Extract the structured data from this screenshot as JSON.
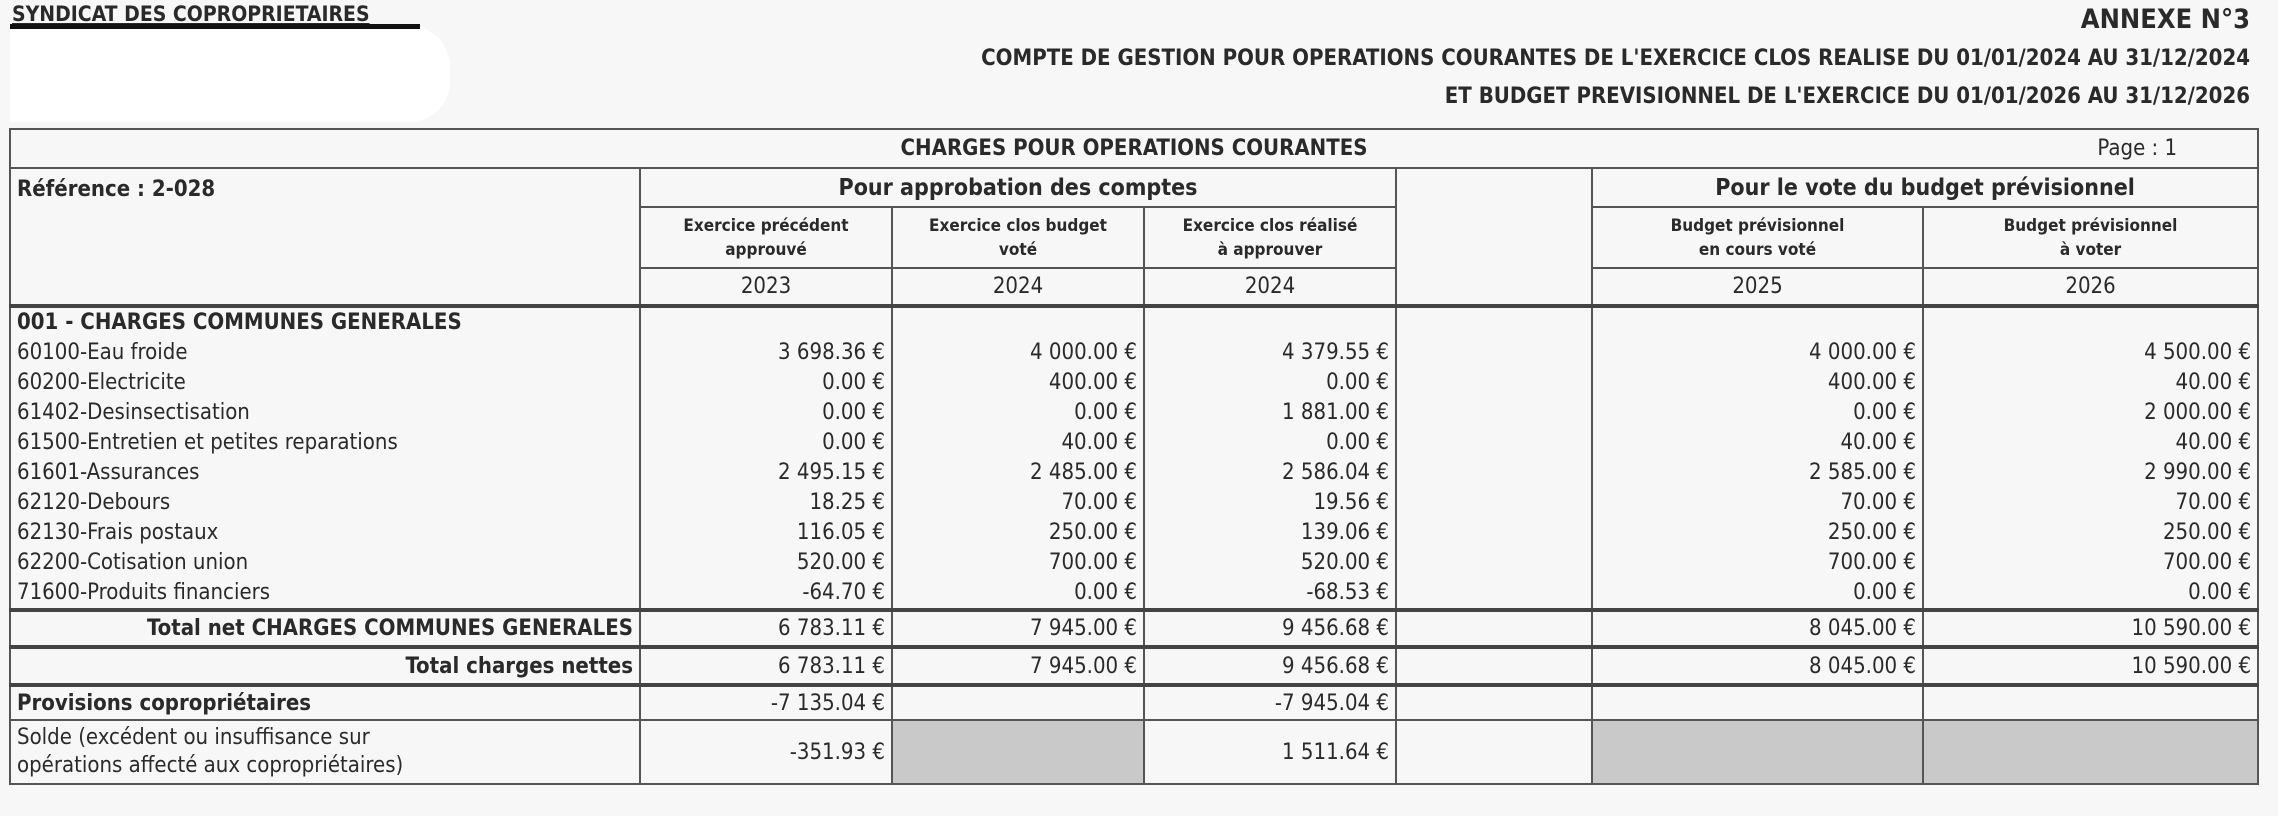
{
  "header": {
    "syndicat": "SYNDICAT DES COPROPRIETAIRES",
    "annexe": "ANNEXE N°3",
    "title_line1": "COMPTE DE GESTION POUR OPERATIONS COURANTES DE L'EXERCICE CLOS REALISE DU 01/01/2024 AU 31/12/2024",
    "title_line2": "ET BUDGET PREVISIONNEL DE L'EXERCICE DU 01/01/2026 AU 31/12/2026"
  },
  "table": {
    "title": "CHARGES POUR OPERATIONS COURANTES",
    "page": "Page : 1",
    "reference": "Référence : 2-028",
    "group_approbation": "Pour approbation des comptes",
    "group_budget": "Pour le vote du budget prévisionnel",
    "columns": [
      {
        "label1": "Exercice précédent",
        "label2": "approuvé",
        "year": "2023"
      },
      {
        "label1": "Exercice clos budget",
        "label2": "voté",
        "year": "2024"
      },
      {
        "label1": "Exercice clos réalisé",
        "label2": "à approuver",
        "year": "2024"
      },
      {
        "label1": "Budget prévisionnel",
        "label2": "en cours voté",
        "year": "2025"
      },
      {
        "label1": "Budget prévisionnel",
        "label2": "à voter",
        "year": "2026"
      }
    ],
    "section": "001 - CHARGES COMMUNES GENERALES",
    "rows": [
      {
        "label": "60100-Eau froide",
        "v": [
          "3 698.36 €",
          "4 000.00 €",
          "4 379.55 €",
          "4 000.00 €",
          "4 500.00 €"
        ]
      },
      {
        "label": "60200-Electricite",
        "v": [
          "0.00 €",
          "400.00 €",
          "0.00 €",
          "400.00 €",
          "40.00 €"
        ]
      },
      {
        "label": "61402-Desinsectisation",
        "v": [
          "0.00 €",
          "0.00 €",
          "1 881.00 €",
          "0.00 €",
          "2 000.00 €"
        ]
      },
      {
        "label": "61500-Entretien et petites reparations",
        "v": [
          "0.00 €",
          "40.00 €",
          "0.00 €",
          "40.00 €",
          "40.00 €"
        ]
      },
      {
        "label": "61601-Assurances",
        "v": [
          "2 495.15 €",
          "2 485.00 €",
          "2 586.04 €",
          "2 585.00 €",
          "2 990.00 €"
        ]
      },
      {
        "label": "62120-Debours",
        "v": [
          "18.25 €",
          "70.00 €",
          "19.56 €",
          "70.00 €",
          "70.00 €"
        ]
      },
      {
        "label": "62130-Frais postaux",
        "v": [
          "116.05 €",
          "250.00 €",
          "139.06 €",
          "250.00 €",
          "250.00 €"
        ]
      },
      {
        "label": "62200-Cotisation union",
        "v": [
          "520.00 €",
          "700.00 €",
          "520.00 €",
          "700.00 €",
          "700.00 €"
        ]
      },
      {
        "label": "71600-Produits financiers",
        "v": [
          "-64.70 €",
          "0.00 €",
          "-68.53 €",
          "0.00 €",
          "0.00 €"
        ]
      }
    ],
    "total_section": {
      "label": "Total net CHARGES COMMUNES GENERALES",
      "v": [
        "6 783.11 €",
        "7 945.00 €",
        "9 456.68 €",
        "8 045.00 €",
        "10 590.00 €"
      ]
    },
    "total_nettes": {
      "label": "Total charges nettes",
      "v": [
        "6 783.11 €",
        "7 945.00 €",
        "9 456.68 €",
        "8 045.00 €",
        "10 590.00 €"
      ]
    },
    "provisions": {
      "label": "Provisions copropriétaires",
      "v": [
        "-7 135.04 €",
        "",
        "-7 945.04 €",
        "",
        ""
      ]
    },
    "solde": {
      "label1": "Solde (excédent ou insuffisance sur",
      "label2": "opérations affecté aux copropriétaires)",
      "v": [
        "-351.93 €",
        "",
        "1 511.64 €",
        "",
        ""
      ]
    }
  }
}
